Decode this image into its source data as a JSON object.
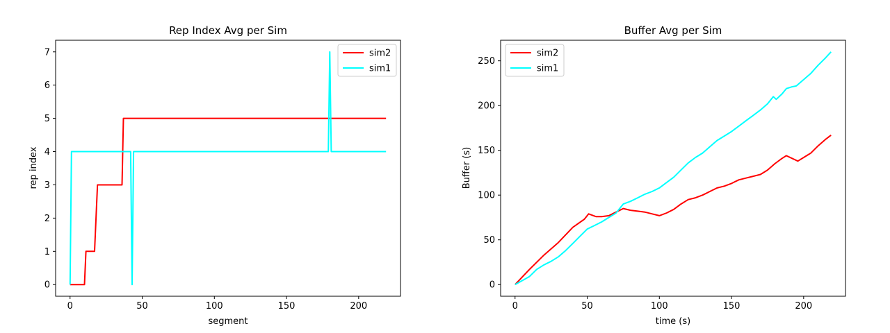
{
  "chart_data": [
    {
      "type": "line",
      "title": "Rep Index Avg per Sim",
      "xlabel": "segment",
      "ylabel": "rep index",
      "xlim": [
        -10,
        229
      ],
      "ylim": [
        -0.35,
        7.35
      ],
      "xticks": [
        0,
        50,
        100,
        150,
        200
      ],
      "yticks": [
        0,
        1,
        2,
        3,
        4,
        5,
        6,
        7
      ],
      "legend": {
        "position": "top-right"
      },
      "series": [
        {
          "name": "sim2",
          "color": "#ff0000",
          "points": [
            [
              0,
              0
            ],
            [
              10,
              0
            ],
            [
              11,
              1
            ],
            [
              17,
              1
            ],
            [
              19,
              3
            ],
            [
              36,
              3
            ],
            [
              37,
              5
            ],
            [
              219,
              5
            ]
          ]
        },
        {
          "name": "sim1",
          "color": "#00ffff",
          "points": [
            [
              0,
              0
            ],
            [
              1,
              4
            ],
            [
              42,
              4
            ],
            [
              43,
              0
            ],
            [
              44,
              4
            ],
            [
              179,
              4
            ],
            [
              180,
              7
            ],
            [
              181,
              4
            ],
            [
              219,
              4
            ]
          ]
        }
      ]
    },
    {
      "type": "line",
      "title": "Buffer Avg per Sim",
      "xlabel": "time (s)",
      "ylabel": "Buffer (s)",
      "xlim": [
        -10,
        229
      ],
      "ylim": [
        -13,
        273
      ],
      "xticks": [
        0,
        50,
        100,
        150,
        200
      ],
      "yticks": [
        0,
        50,
        100,
        150,
        200,
        250
      ],
      "legend": {
        "position": "top-left"
      },
      "series": [
        {
          "name": "sim2",
          "color": "#ff0000",
          "points": [
            [
              0,
              0
            ],
            [
              10,
              17
            ],
            [
              20,
              33
            ],
            [
              30,
              47
            ],
            [
              40,
              64
            ],
            [
              48,
              73
            ],
            [
              51,
              79
            ],
            [
              56,
              76
            ],
            [
              60,
              76
            ],
            [
              65,
              77
            ],
            [
              70,
              81
            ],
            [
              75,
              85
            ],
            [
              80,
              83
            ],
            [
              85,
              82
            ],
            [
              90,
              81
            ],
            [
              95,
              79
            ],
            [
              100,
              77
            ],
            [
              105,
              80
            ],
            [
              110,
              84
            ],
            [
              115,
              90
            ],
            [
              120,
              95
            ],
            [
              125,
              97
            ],
            [
              130,
              100
            ],
            [
              135,
              104
            ],
            [
              140,
              108
            ],
            [
              145,
              110
            ],
            [
              150,
              113
            ],
            [
              155,
              117
            ],
            [
              160,
              119
            ],
            [
              165,
              121
            ],
            [
              170,
              123
            ],
            [
              175,
              128
            ],
            [
              180,
              135
            ],
            [
              185,
              141
            ],
            [
              188,
              144
            ],
            [
              192,
              141
            ],
            [
              196,
              138
            ],
            [
              200,
              142
            ],
            [
              205,
              147
            ],
            [
              210,
              155
            ],
            [
              215,
              162
            ],
            [
              219,
              167
            ]
          ]
        },
        {
          "name": "sim1",
          "color": "#00ffff",
          "points": [
            [
              0,
              0
            ],
            [
              10,
              9
            ],
            [
              15,
              17
            ],
            [
              20,
              22
            ],
            [
              25,
              26
            ],
            [
              30,
              31
            ],
            [
              35,
              38
            ],
            [
              40,
              46
            ],
            [
              45,
              54
            ],
            [
              50,
              62
            ],
            [
              55,
              66
            ],
            [
              60,
              70
            ],
            [
              65,
              75
            ],
            [
              70,
              80
            ],
            [
              75,
              90
            ],
            [
              80,
              93
            ],
            [
              85,
              97
            ],
            [
              90,
              101
            ],
            [
              95,
              104
            ],
            [
              100,
              108
            ],
            [
              105,
              114
            ],
            [
              110,
              120
            ],
            [
              115,
              128
            ],
            [
              120,
              136
            ],
            [
              125,
              142
            ],
            [
              130,
              147
            ],
            [
              135,
              154
            ],
            [
              140,
              161
            ],
            [
              145,
              166
            ],
            [
              150,
              171
            ],
            [
              155,
              177
            ],
            [
              160,
              183
            ],
            [
              165,
              189
            ],
            [
              170,
              195
            ],
            [
              175,
              202
            ],
            [
              179,
              210
            ],
            [
              181,
              207
            ],
            [
              185,
              213
            ],
            [
              188,
              219
            ],
            [
              192,
              221
            ],
            [
              195,
              222
            ],
            [
              200,
              229
            ],
            [
              205,
              236
            ],
            [
              210,
              245
            ],
            [
              215,
              253
            ],
            [
              219,
              260
            ]
          ]
        }
      ]
    }
  ]
}
